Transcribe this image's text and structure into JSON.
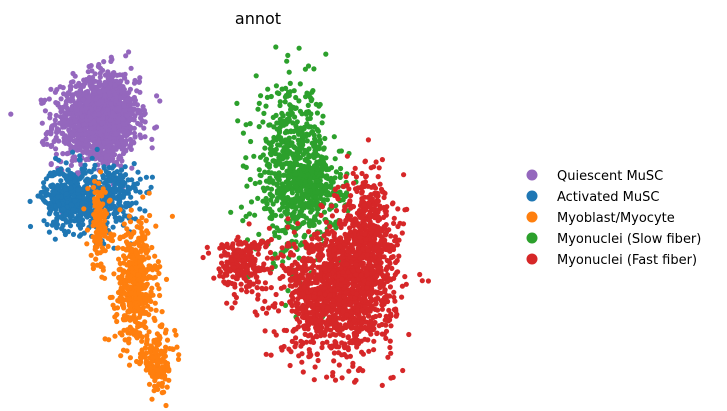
{
  "chart_data": {
    "type": "scatter",
    "title": "annot",
    "xlabel": "",
    "ylabel": "",
    "axes_visible": false,
    "legend_position": "right",
    "series": [
      {
        "name": "Quiescent MuSC",
        "color": "#9467bd",
        "clusters": [
          {
            "cx": 0.14,
            "cy": 0.76,
            "sx": 0.045,
            "sy": 0.06,
            "n": 900
          },
          {
            "cx": 0.17,
            "cy": 0.8,
            "sx": 0.035,
            "sy": 0.06,
            "n": 500
          }
        ]
      },
      {
        "name": "Activated MuSC",
        "color": "#1f77b4",
        "clusters": [
          {
            "cx": 0.09,
            "cy": 0.55,
            "sx": 0.03,
            "sy": 0.045,
            "n": 450
          },
          {
            "cx": 0.18,
            "cy": 0.55,
            "sx": 0.03,
            "sy": 0.05,
            "n": 250
          }
        ]
      },
      {
        "name": "Myoblast/Myocyte",
        "color": "#ff7f0e",
        "clusters": [
          {
            "cx": 0.23,
            "cy": 0.3,
            "sx": 0.022,
            "sy": 0.09,
            "n": 480
          },
          {
            "cx": 0.15,
            "cy": 0.47,
            "sx": 0.012,
            "sy": 0.06,
            "n": 120
          },
          {
            "cx": 0.28,
            "cy": 0.08,
            "sx": 0.018,
            "sy": 0.04,
            "n": 130
          }
        ]
      },
      {
        "name": "Myonuclei (Slow fiber)",
        "color": "#2ca02c",
        "clusters": [
          {
            "cx": 0.57,
            "cy": 0.62,
            "sx": 0.04,
            "sy": 0.12,
            "n": 650
          },
          {
            "cx": 0.63,
            "cy": 0.58,
            "sx": 0.03,
            "sy": 0.06,
            "n": 200
          }
        ]
      },
      {
        "name": "Myonuclei (Fast fiber)",
        "color": "#d62728",
        "clusters": [
          {
            "cx": 0.67,
            "cy": 0.28,
            "sx": 0.06,
            "sy": 0.09,
            "n": 1300
          },
          {
            "cx": 0.73,
            "cy": 0.45,
            "sx": 0.03,
            "sy": 0.09,
            "n": 450
          },
          {
            "cx": 0.46,
            "cy": 0.36,
            "sx": 0.03,
            "sy": 0.04,
            "n": 220
          }
        ]
      }
    ]
  }
}
